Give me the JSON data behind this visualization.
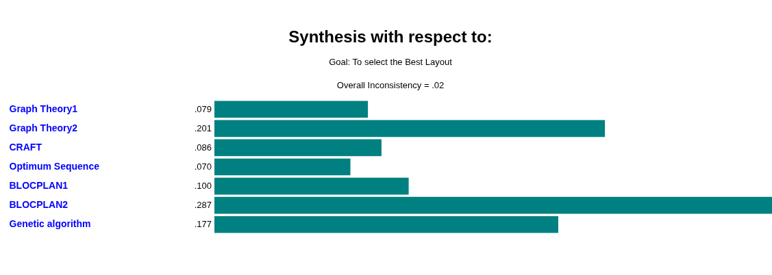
{
  "chart_data": {
    "type": "bar",
    "orientation": "horizontal",
    "title": "Synthesis with respect to:",
    "subtitle": "Goal: To select the Best Layout",
    "annotations": [
      "Overall Inconsistency = .02"
    ],
    "categories": [
      "Graph Theory1",
      "Graph Theory2",
      "CRAFT",
      "Optimum Sequence",
      "BLOCPLAN1",
      "BLOCPLAN2",
      "Genetic algorithm"
    ],
    "values": [
      0.079,
      0.201,
      0.086,
      0.07,
      0.1,
      0.287,
      0.177
    ],
    "value_labels": [
      ".079",
      ".201",
      ".086",
      ".070",
      ".100",
      ".287",
      ".177"
    ],
    "color": "#008080"
  }
}
